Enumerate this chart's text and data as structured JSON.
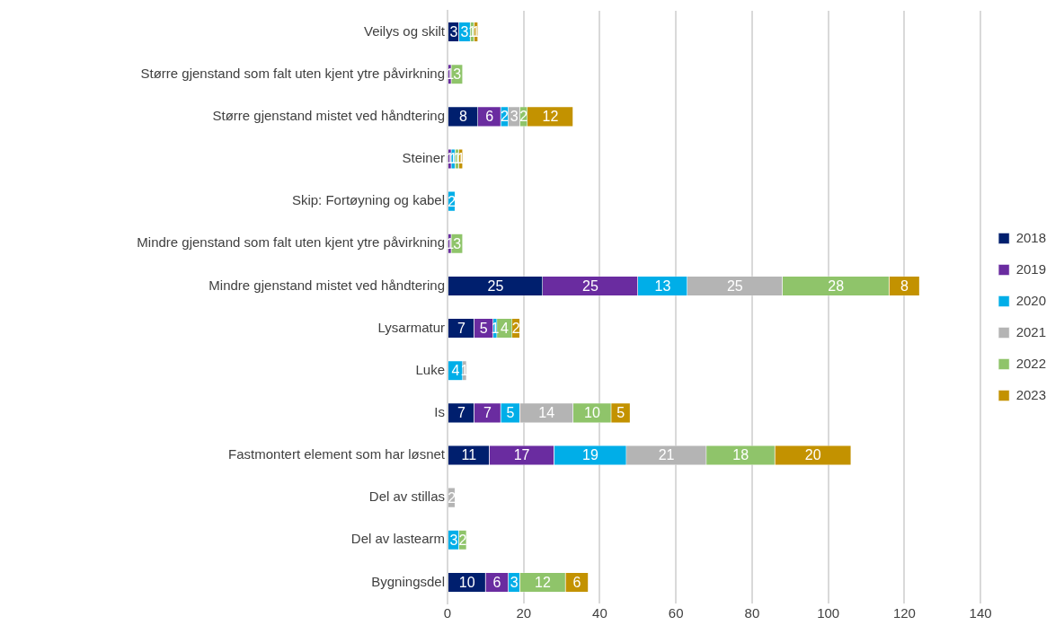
{
  "chart_data": {
    "type": "bar",
    "orientation": "horizontal",
    "stacked": true,
    "data_labels": true,
    "grid": "x",
    "legend": "right",
    "categories": [
      "Veilys og skilt",
      "Større gjenstand som falt uten kjent ytre påvirkning",
      "Større gjenstand mistet ved håndtering",
      "Steiner",
      "Skip: Fortøyning og kabel",
      "Mindre gjenstand som falt uten kjent ytre påvirkning",
      "Mindre gjenstand mistet ved håndtering",
      "Lysarmatur",
      "Luke",
      "Is",
      "Fastmontert element som har løsnet",
      "Del av stillas",
      "Del av lastearm",
      "Bygningsdel"
    ],
    "xlim": [
      0,
      140
    ],
    "xticks": [
      0,
      20,
      40,
      60,
      80,
      100,
      120,
      140
    ],
    "series": [
      {
        "name": "2018",
        "color": "#001f6e",
        "values": [
          3,
          null,
          8,
          null,
          null,
          null,
          25,
          7,
          null,
          7,
          11,
          null,
          null,
          10
        ]
      },
      {
        "name": "2019",
        "color": "#6a2ca0",
        "values": [
          null,
          1,
          6,
          1,
          null,
          1,
          25,
          5,
          null,
          7,
          17,
          null,
          null,
          6
        ]
      },
      {
        "name": "2020",
        "color": "#00aee8",
        "values": [
          3,
          null,
          2,
          1,
          2,
          null,
          13,
          1,
          4,
          5,
          19,
          null,
          3,
          3
        ]
      },
      {
        "name": "2021",
        "color": "#b4b4b4",
        "values": [
          null,
          null,
          3,
          null,
          null,
          null,
          25,
          null,
          1,
          14,
          21,
          2,
          null,
          null
        ]
      },
      {
        "name": "2022",
        "color": "#8fc46a",
        "values": [
          1,
          3,
          2,
          1,
          null,
          3,
          28,
          4,
          null,
          10,
          18,
          null,
          2,
          12
        ]
      },
      {
        "name": "2023",
        "color": "#c39200",
        "values": [
          1,
          null,
          12,
          1,
          null,
          null,
          8,
          2,
          null,
          5,
          20,
          null,
          null,
          6
        ]
      }
    ]
  }
}
